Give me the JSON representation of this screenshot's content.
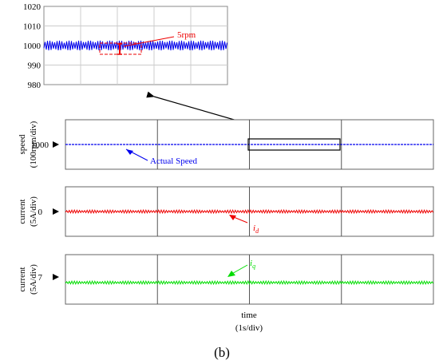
{
  "figure_label": "(b)",
  "chart_data": [
    {
      "type": "line",
      "panel": "zoom",
      "x_range": [
        0,
        5
      ],
      "ylim": [
        980,
        1020
      ],
      "yticks": [
        980,
        990,
        1000,
        1010,
        1020
      ],
      "grid": true,
      "series": [
        {
          "color": "#0000ee",
          "mean": 1000,
          "ripple_peak_to_peak": 5
        }
      ],
      "annotation": {
        "text": "5rpm",
        "color": "#ee0000",
        "at_value": 1000
      }
    },
    {
      "type": "line",
      "panel": "speed",
      "ylabel_line1": "speed",
      "ylabel_line2": "(100rpm/div)",
      "marker_label": "1000",
      "grid": true,
      "series": [
        {
          "name": "Actual Speed",
          "color": "#0000ee",
          "level": 1000
        }
      ]
    },
    {
      "type": "line",
      "panel": "id",
      "ylabel_line1": "current",
      "ylabel_line2": "(5A/div)",
      "marker_label": "0",
      "grid": true,
      "series": [
        {
          "name": "i",
          "subscript": "d",
          "color": "#ee0000",
          "level_A": 0,
          "ripple_peak_to_peak_A": 1.2
        }
      ]
    },
    {
      "type": "line",
      "panel": "iq",
      "ylabel_line1": "current",
      "ylabel_line2": "(5A/div)",
      "marker_label": "7",
      "grid": true,
      "series": [
        {
          "name": "i",
          "subscript": "q",
          "color": "#00dd00",
          "level_A": 7,
          "ripple_peak_to_peak_A": 1.2
        }
      ]
    }
  ],
  "x_axis": {
    "label": "time",
    "units": "(1s/div)"
  }
}
